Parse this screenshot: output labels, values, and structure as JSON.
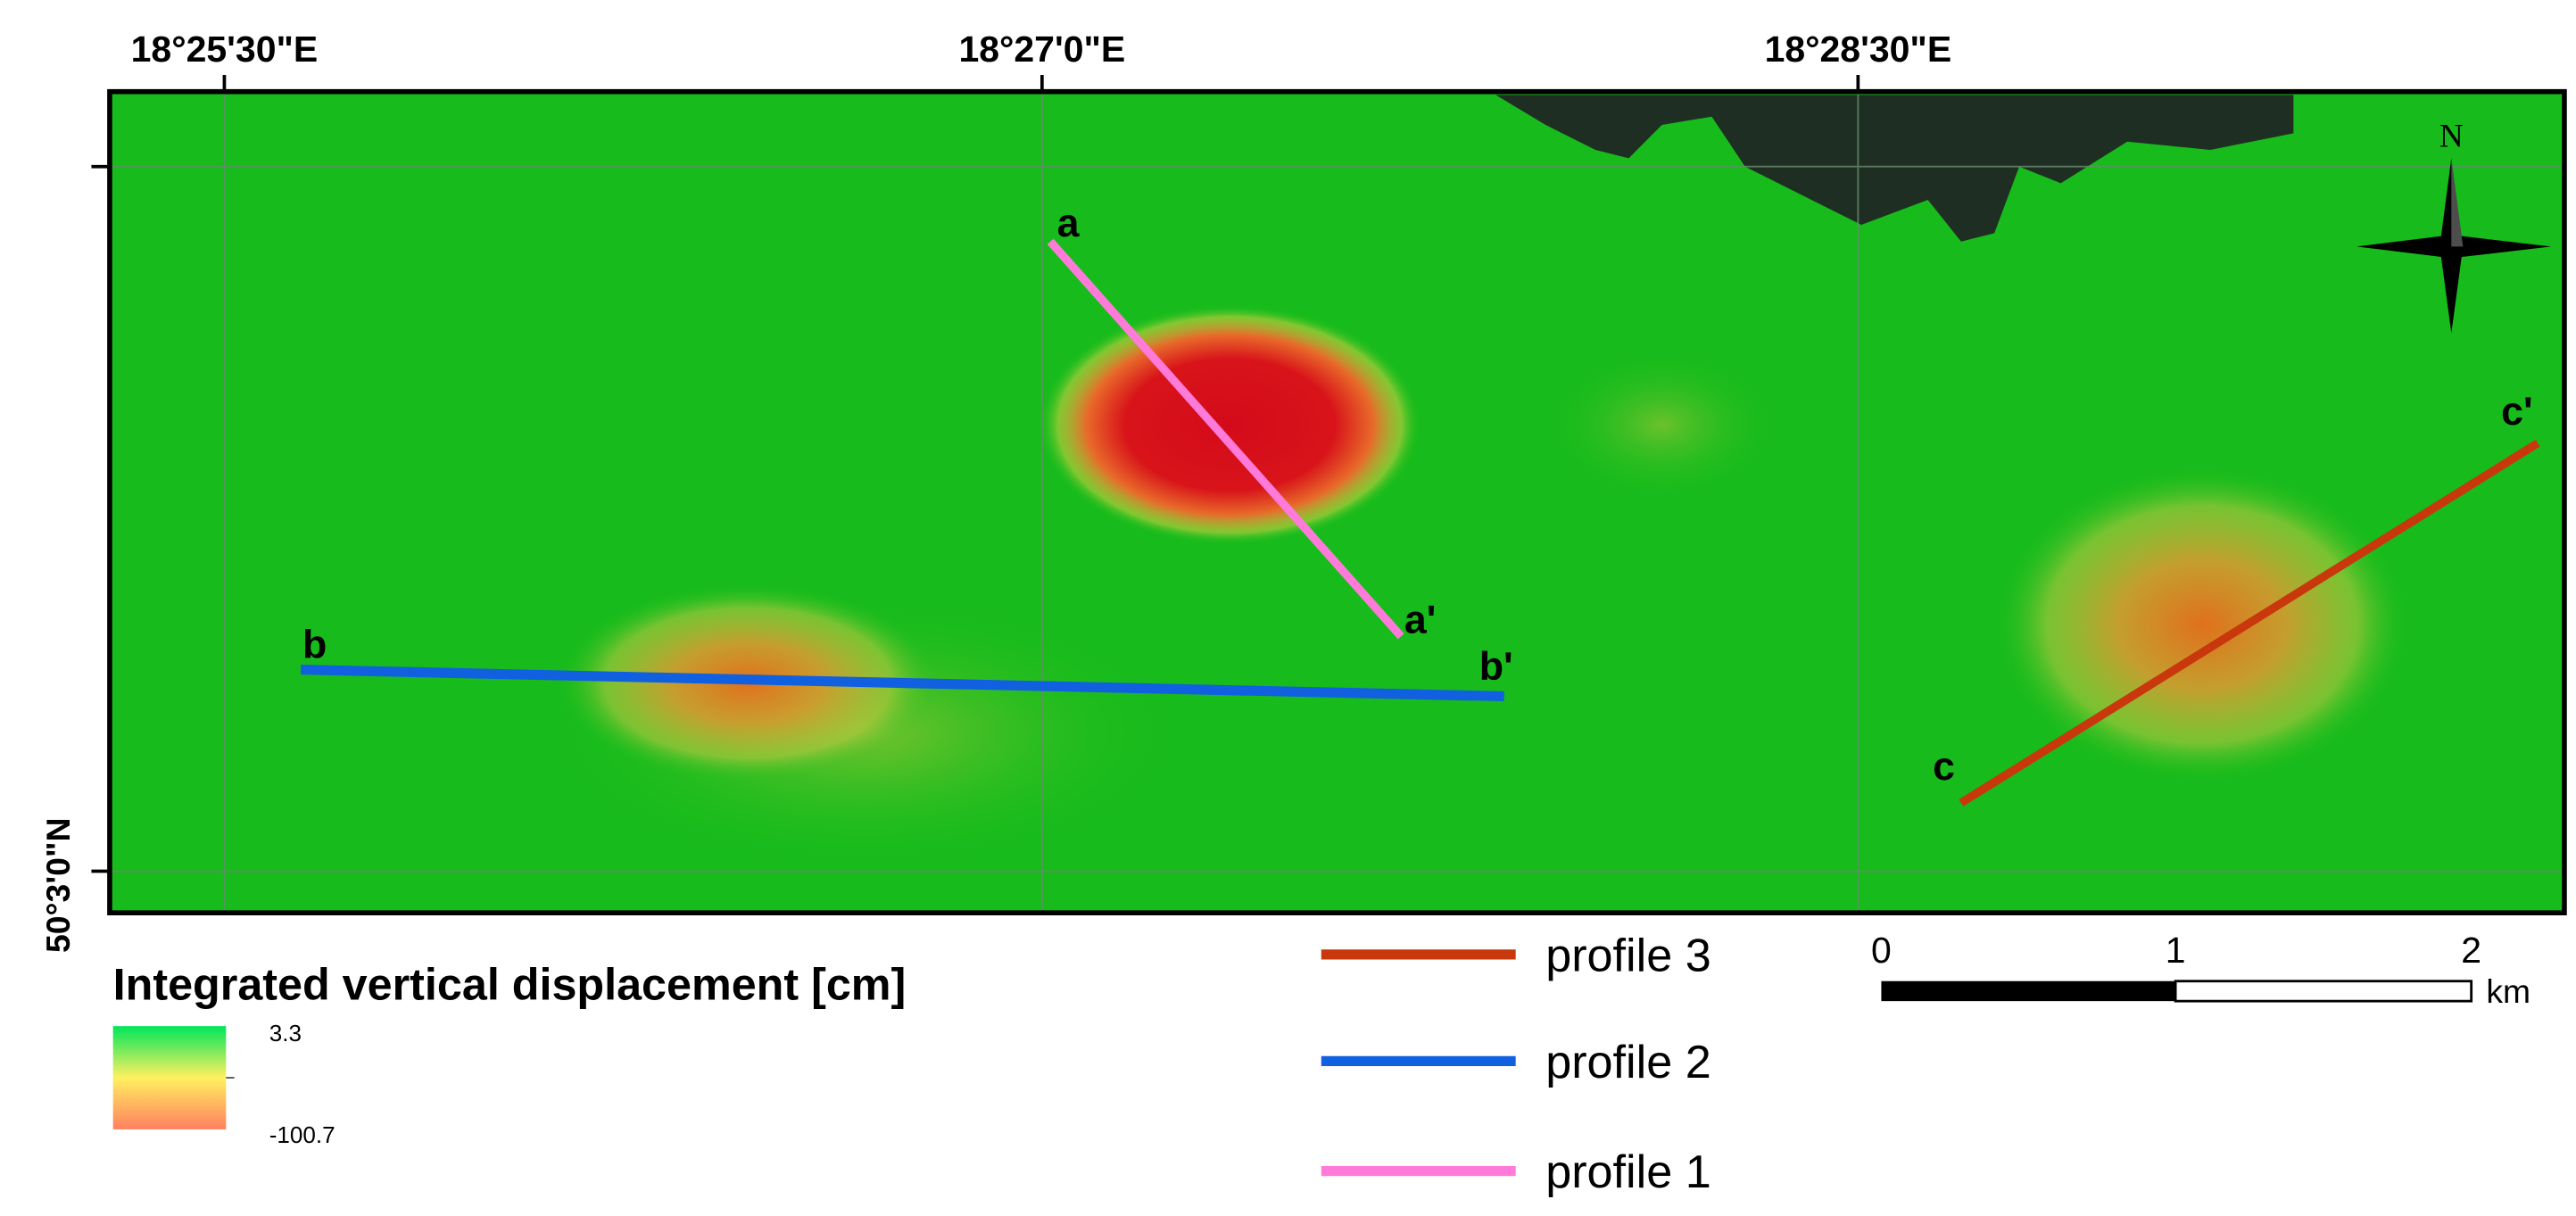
{
  "coordinates": {
    "longitude_labels": [
      "18°25'30\"E",
      "18°27'0\"E",
      "18°28'30\"E"
    ],
    "latitude_labels": [
      "50°3'0\"N"
    ]
  },
  "map": {
    "north_label": "N",
    "profiles": [
      {
        "name": "profile 1",
        "start_label": "a",
        "end_label": "a'",
        "color": "#ff7ad9"
      },
      {
        "name": "profile 2",
        "start_label": "b",
        "end_label": "b'",
        "color": "#1060e0"
      },
      {
        "name": "profile 3",
        "start_label": "c",
        "end_label": "c'",
        "color": "#c8380c"
      }
    ]
  },
  "legend": {
    "title": "Integrated vertical displacement [cm]",
    "max_value": "3.3",
    "min_value": "-100.7",
    "ramp_colors": [
      "#00e65a",
      "#fff060",
      "#ff8060"
    ],
    "profile_items": [
      "profile 3",
      "profile 2",
      "profile 1"
    ]
  },
  "scale_bar": {
    "ticks": [
      "0",
      "1",
      "2"
    ],
    "unit": "km"
  }
}
